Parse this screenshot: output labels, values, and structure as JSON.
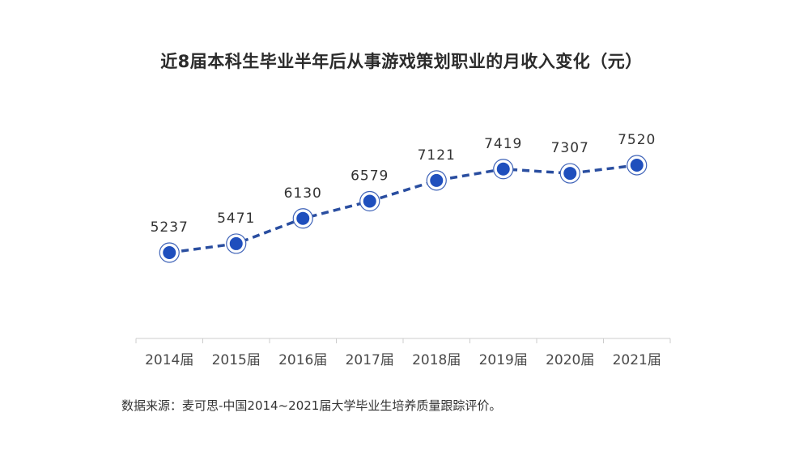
{
  "chart_data": {
    "type": "line",
    "title": "近8届本科生毕业半年后从事游戏策划职业的月收入变化（元）",
    "categories": [
      "2014届",
      "2015届",
      "2016届",
      "2017届",
      "2018届",
      "2019届",
      "2020届",
      "2021届"
    ],
    "series": [
      {
        "values": [
          5237,
          5471,
          6130,
          6579,
          7121,
          7419,
          7307,
          7520
        ]
      }
    ],
    "xlabel": "",
    "ylabel": "",
    "grid": false,
    "line_style": "dashed",
    "marker": "filled-circle-with-ring",
    "colors": {
      "line": "#2a4ea0",
      "marker_fill": "#1f4fbd",
      "marker_ring": "#3f63b8",
      "axis": "#cccccc"
    }
  },
  "source": "数据来源：麦可思-中国2014~2021届大学毕业生培养质量跟踪评价。"
}
